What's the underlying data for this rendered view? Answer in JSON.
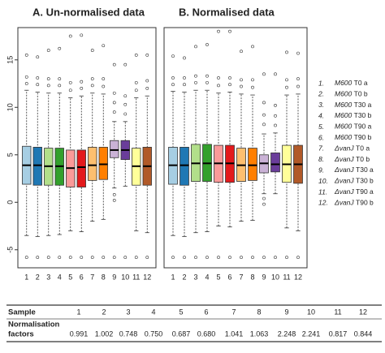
{
  "chart_data": [
    {
      "type": "box",
      "title": "A. Un-normalised data",
      "categories": [
        "1",
        "2",
        "3",
        "4",
        "5",
        "6",
        "7",
        "8",
        "9",
        "10",
        "11",
        "12"
      ],
      "ylim": [
        -6.9,
        18.4
      ],
      "yticks": [
        -5,
        0,
        5,
        10,
        15
      ],
      "boxes": [
        {
          "color": "#a6cee3",
          "low": -3.5,
          "q1": 1.9,
          "median": 3.9,
          "q3": 5.9,
          "high": 11.8,
          "outliers": [
            12.5,
            13.2,
            15.5,
            -5.8
          ]
        },
        {
          "color": "#1f78b4",
          "low": -3.6,
          "q1": 1.8,
          "median": 3.9,
          "q3": 5.8,
          "high": 11.6,
          "outliers": [
            12.4,
            13.1,
            15.3,
            -5.8
          ]
        },
        {
          "color": "#b2df8a",
          "low": -3.5,
          "q1": 1.8,
          "median": 3.8,
          "q3": 5.7,
          "high": 11.5,
          "outliers": [
            12.3,
            13.0,
            16.0,
            -5.8
          ]
        },
        {
          "color": "#33a02c",
          "low": -3.4,
          "q1": 1.8,
          "median": 3.8,
          "q3": 5.7,
          "high": 11.5,
          "outliers": [
            12.3,
            13.0,
            16.2,
            -5.8
          ]
        },
        {
          "color": "#fb9a99",
          "low": -3.0,
          "q1": 1.6,
          "median": 3.6,
          "q3": 5.5,
          "high": 11.0,
          "outliers": [
            11.8,
            12.6,
            17.5,
            -5.8
          ]
        },
        {
          "color": "#e31a1c",
          "low": -3.1,
          "q1": 1.6,
          "median": 3.7,
          "q3": 5.5,
          "high": 11.2,
          "outliers": [
            12.0,
            12.7,
            17.6,
            -5.8
          ]
        },
        {
          "color": "#fdbf6f",
          "low": -2.0,
          "q1": 2.3,
          "median": 3.9,
          "q3": 5.8,
          "high": 11.5,
          "outliers": [
            12.3,
            13.0,
            16.0,
            -5.8
          ]
        },
        {
          "color": "#ff7f00",
          "low": -1.8,
          "q1": 2.4,
          "median": 4.0,
          "q3": 5.8,
          "high": 11.4,
          "outliers": [
            12.2,
            13.0,
            16.5,
            -5.8
          ]
        },
        {
          "color": "#cab2d6",
          "low": 1.5,
          "q1": 4.7,
          "median": 5.5,
          "q3": 6.5,
          "high": 8.5,
          "outliers": [
            9.5,
            10.5,
            11.5,
            14.5,
            0.8,
            0.2,
            -5.8
          ]
        },
        {
          "color": "#6a3d9a",
          "low": 1.7,
          "q1": 4.5,
          "median": 5.5,
          "q3": 6.5,
          "high": 8.5,
          "outliers": [
            9.3,
            10.3,
            11.2,
            14.5,
            -5.8
          ]
        },
        {
          "color": "#ffff99",
          "low": -3.0,
          "q1": 1.8,
          "median": 3.8,
          "q3": 5.7,
          "high": 11.0,
          "outliers": [
            11.8,
            12.6,
            15.5,
            -5.8
          ]
        },
        {
          "color": "#b15928",
          "low": -3.2,
          "q1": 1.8,
          "median": 3.8,
          "q3": 5.8,
          "high": 11.2,
          "outliers": [
            12.0,
            12.8,
            15.5,
            -5.8
          ]
        }
      ]
    },
    {
      "type": "box",
      "title": "B. Normalised data",
      "categories": [
        "1",
        "2",
        "3",
        "4",
        "5",
        "6",
        "7",
        "8",
        "9",
        "10",
        "11",
        "12"
      ],
      "ylim": [
        -6.9,
        18.4
      ],
      "boxes": [
        {
          "color": "#a6cee3",
          "low": -3.5,
          "q1": 1.9,
          "median": 3.9,
          "q3": 5.8,
          "high": 11.7,
          "outliers": [
            12.4,
            13.1,
            15.4,
            -5.8
          ]
        },
        {
          "color": "#1f78b4",
          "low": -3.6,
          "q1": 1.8,
          "median": 3.9,
          "q3": 5.8,
          "high": 11.6,
          "outliers": [
            12.4,
            13.1,
            15.2,
            -5.8
          ]
        },
        {
          "color": "#b2df8a",
          "low": -3.2,
          "q1": 2.2,
          "median": 4.1,
          "q3": 6.1,
          "high": 11.8,
          "outliers": [
            12.6,
            13.3,
            16.4,
            -5.8
          ]
        },
        {
          "color": "#33a02c",
          "low": -3.1,
          "q1": 2.2,
          "median": 4.1,
          "q3": 6.1,
          "high": 11.8,
          "outliers": [
            12.6,
            13.3,
            16.6,
            -5.8
          ]
        },
        {
          "color": "#fb9a99",
          "low": -2.5,
          "q1": 2.1,
          "median": 4.1,
          "q3": 6.0,
          "high": 11.5,
          "outliers": [
            12.3,
            13.1,
            18.0,
            -5.8
          ]
        },
        {
          "color": "#e31a1c",
          "low": -2.6,
          "q1": 2.1,
          "median": 4.1,
          "q3": 6.0,
          "high": 11.6,
          "outliers": [
            12.4,
            13.1,
            18.0,
            -5.8
          ]
        },
        {
          "color": "#fdbf6f",
          "low": -2.0,
          "q1": 2.2,
          "median": 3.9,
          "q3": 5.7,
          "high": 11.4,
          "outliers": [
            12.2,
            12.9,
            15.9,
            -5.8
          ]
        },
        {
          "color": "#ff7f00",
          "low": -1.9,
          "q1": 2.3,
          "median": 3.9,
          "q3": 5.7,
          "high": 11.3,
          "outliers": [
            12.1,
            12.9,
            16.4,
            -5.8
          ]
        },
        {
          "color": "#cab2d6",
          "low": 0.9,
          "q1": 3.1,
          "median": 4.1,
          "q3": 5.0,
          "high": 7.2,
          "outliers": [
            8.2,
            9.2,
            10.5,
            13.5,
            0.4,
            -0.2,
            -5.8
          ]
        },
        {
          "color": "#6a3d9a",
          "low": 0.9,
          "q1": 3.2,
          "median": 4.0,
          "q3": 5.2,
          "high": 7.3,
          "outliers": [
            8.1,
            9.1,
            10.2,
            13.5,
            -5.8
          ]
        },
        {
          "color": "#ffff99",
          "low": -2.7,
          "q1": 2.1,
          "median": 4.0,
          "q3": 6.0,
          "high": 11.3,
          "outliers": [
            12.1,
            12.9,
            15.8,
            -5.8
          ]
        },
        {
          "color": "#b15928",
          "low": -3.0,
          "q1": 2.0,
          "median": 4.0,
          "q3": 6.0,
          "high": 11.4,
          "outliers": [
            12.2,
            13.0,
            15.7,
            -5.8
          ]
        }
      ]
    }
  ],
  "legend": [
    {
      "number": "1.",
      "strain": "M600",
      "sample": "T0 a"
    },
    {
      "number": "2.",
      "strain": "M600",
      "sample": "T0 b"
    },
    {
      "number": "3.",
      "strain": "M600",
      "sample": "T30 a"
    },
    {
      "number": "4.",
      "strain": "M600",
      "sample": "T30 b"
    },
    {
      "number": "5.",
      "strain": "M600",
      "sample": "T90 a"
    },
    {
      "number": "6.",
      "strain": "M600",
      "sample": "T90 b"
    },
    {
      "number": "7.",
      "strain": "ΔvanJ",
      "sample": "T0 a"
    },
    {
      "number": "8.",
      "strain": "ΔvanJ",
      "sample": "T0 b"
    },
    {
      "number": "9.",
      "strain": "ΔvanJ",
      "sample": "T30 a"
    },
    {
      "number": "10.",
      "strain": "ΔvanJ",
      "sample": "T30 b"
    },
    {
      "number": "11.",
      "strain": "ΔvanJ",
      "sample": "T90 a"
    },
    {
      "number": "12.",
      "strain": "ΔvanJ",
      "sample": "T90 b"
    }
  ],
  "table": {
    "header": {
      "label": [
        "Sample"
      ],
      "cells": [
        "1",
        "2",
        "3",
        "4",
        "5",
        "6",
        "7",
        "8",
        "9",
        "10",
        "11",
        "12"
      ]
    },
    "row": {
      "label": [
        "Normalisation",
        "factors"
      ],
      "cells": [
        "0.991",
        "1.002",
        "0.748",
        "0.750",
        "0.687",
        "0.680",
        "1.041",
        "1.063",
        "2.248",
        "2.241",
        "0.817",
        "0.844"
      ]
    }
  }
}
